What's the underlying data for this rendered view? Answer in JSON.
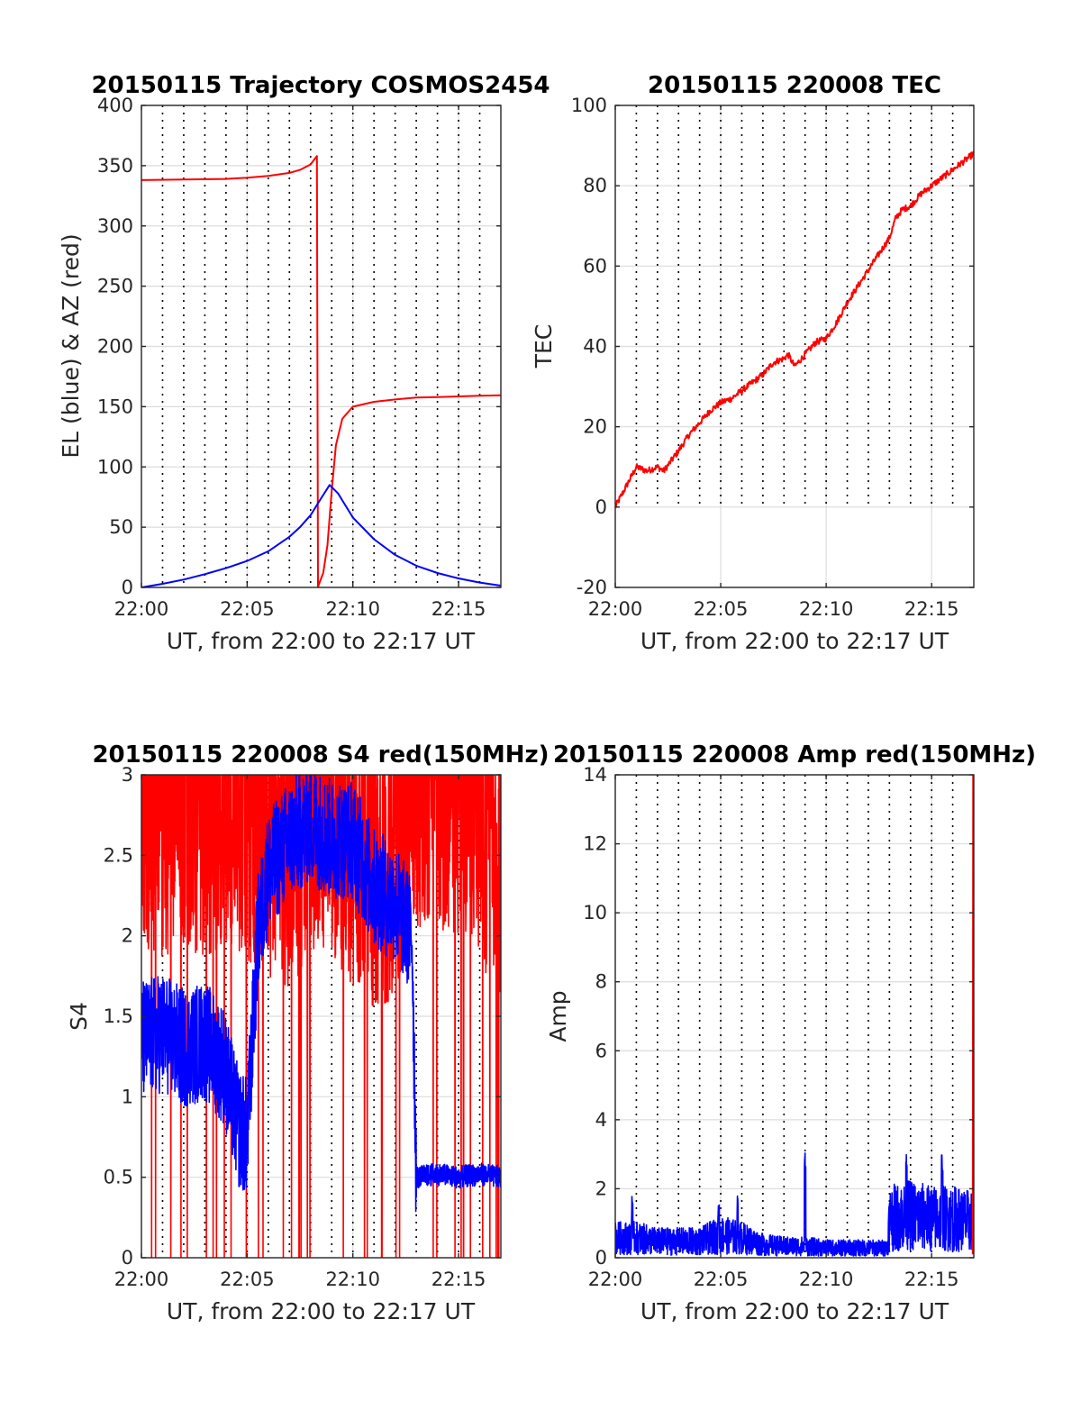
{
  "figure": {
    "background": "#ffffff",
    "colors": {
      "red": "#ff0000",
      "blue": "#0000ff",
      "axis": "#262626",
      "grid": "#dcdcdc",
      "vgrid": "#000000"
    }
  },
  "chart_data": [
    {
      "id": "trajectory",
      "type": "line",
      "title": "20150115 Trajectory COSMOS2454",
      "xlabel": "UT, from 22:00 to 22:17 UT",
      "ylabel": "EL (blue) & AZ (red)",
      "x_unit": "minutes after 22:00 UT",
      "xlim": [
        0,
        17
      ],
      "ylim": [
        0,
        400
      ],
      "xticks": [
        0,
        5,
        10,
        15
      ],
      "xtick_labels": [
        "22:00",
        "22:05",
        "22:10",
        "22:15"
      ],
      "yticks": [
        0,
        50,
        100,
        150,
        200,
        250,
        300,
        350,
        400
      ],
      "ytick_labels": [
        "0",
        "50",
        "100",
        "150",
        "200",
        "250",
        "300",
        "350",
        "400"
      ],
      "dotted_vertical_grid": true,
      "series": [
        {
          "color": "#ff0000",
          "x": [
            0,
            2,
            4,
            5,
            6,
            7,
            7.5,
            8,
            8.3,
            8.35,
            8.4,
            8.6,
            8.8,
            9.0,
            9.2,
            9.5,
            10,
            11,
            12,
            13,
            14,
            15,
            16,
            17
          ],
          "y": [
            338,
            338.5,
            339,
            340,
            341.5,
            344,
            346.5,
            351,
            358,
            0,
            3,
            12,
            35,
            80,
            118,
            140,
            150,
            154,
            156,
            157.5,
            158,
            158.5,
            159,
            159.5
          ]
        },
        {
          "color": "#0000ff",
          "x": [
            0,
            1,
            2,
            3,
            4,
            5,
            6,
            7,
            7.5,
            8,
            8.5,
            8.9,
            9.3,
            10,
            11,
            12,
            13,
            14,
            15,
            16,
            17
          ],
          "y": [
            0,
            3,
            6.5,
            11,
            16,
            22,
            30,
            42,
            50,
            60,
            74,
            85,
            78,
            58,
            40,
            27,
            18,
            12,
            7.5,
            4,
            1.5
          ]
        }
      ]
    },
    {
      "id": "tec",
      "type": "line",
      "title": "20150115 220008 TEC",
      "xlabel": "UT, from 22:00 to 22:17 UT",
      "ylabel": "TEC",
      "x_unit": "minutes after 22:00 UT",
      "xlim": [
        0,
        17
      ],
      "ylim": [
        -20,
        100
      ],
      "xticks": [
        0,
        5,
        10,
        15
      ],
      "xtick_labels": [
        "22:00",
        "22:05",
        "22:10",
        "22:15"
      ],
      "yticks": [
        -20,
        0,
        20,
        40,
        60,
        80,
        100
      ],
      "ytick_labels": [
        "-20",
        "0",
        "20",
        "40",
        "60",
        "80",
        "100"
      ],
      "dotted_vertical_grid_below": 0,
      "series": [
        {
          "color": "#ff0000",
          "x": [
            0,
            0.3,
            0.6,
            1.0,
            1.5,
            2.0,
            2.3,
            3.0,
            3.5,
            4.0,
            4.5,
            5.0,
            5.5,
            6.0,
            6.5,
            7.0,
            7.5,
            8.0,
            8.2,
            8.5,
            9.0,
            9.5,
            10.0,
            10.5,
            11.0,
            11.5,
            12.0,
            12.5,
            13.0,
            13.3,
            13.6,
            14.0,
            14.5,
            15.0,
            15.5,
            16.0,
            16.5,
            17.0
          ],
          "y": [
            0,
            3,
            6,
            10,
            9,
            10,
            9,
            14,
            18,
            21,
            24,
            26,
            27,
            29,
            31,
            33,
            36,
            37,
            38,
            35,
            38,
            41,
            42,
            46,
            51,
            55,
            59,
            63,
            67,
            72,
            74,
            75,
            78,
            80,
            82,
            84,
            86,
            88
          ]
        }
      ]
    },
    {
      "id": "s4",
      "type": "line",
      "title": "20150115 220008 S4 red(150MHz)",
      "xlabel": "UT, from 22:00 to 22:17 UT",
      "ylabel": "S4",
      "x_unit": "minutes after 22:00 UT",
      "xlim": [
        0,
        17
      ],
      "ylim": [
        0,
        3
      ],
      "xticks": [
        0,
        5,
        10,
        15
      ],
      "xtick_labels": [
        "22:00",
        "22:05",
        "22:10",
        "22:15"
      ],
      "yticks": [
        0,
        0.5,
        1,
        1.5,
        2,
        2.5,
        3
      ],
      "ytick_labels": [
        "0",
        "0.5",
        "1",
        "1.5",
        "2",
        "2.5",
        "3"
      ],
      "dotted_vertical_grid": true,
      "series": [
        {
          "color": "#ff0000",
          "noisy": true,
          "dense": true,
          "x": [
            0,
            1,
            2,
            3,
            4,
            5,
            6,
            7,
            8,
            9,
            10,
            11,
            12,
            12.5,
            13,
            14,
            15,
            16,
            17
          ],
          "y": [
            2.7,
            2.6,
            2.7,
            2.6,
            2.7,
            2.6,
            2.5,
            2.4,
            2.6,
            2.6,
            2.4,
            2.3,
            2.3,
            2.7,
            2.8,
            2.8,
            2.7,
            2.6,
            2.3
          ],
          "drops_to_zero": true
        },
        {
          "color": "#0000ff",
          "noisy": true,
          "dense": true,
          "x": [
            0,
            1,
            2,
            3,
            3.9,
            4.6,
            5.0,
            5.5,
            6.0,
            7.0,
            8.0,
            9.0,
            10.0,
            11.0,
            12.0,
            12.8,
            13.0,
            14,
            15,
            16,
            17
          ],
          "y": [
            1.35,
            1.4,
            1.3,
            1.35,
            1.2,
            0.8,
            0.75,
            2.0,
            2.4,
            2.6,
            2.7,
            2.6,
            2.6,
            2.3,
            2.2,
            2.0,
            0.5,
            0.52,
            0.5,
            0.52,
            0.5
          ]
        }
      ]
    },
    {
      "id": "amp",
      "type": "line",
      "title": "20150115 220008 Amp red(150MHz)",
      "xlabel": "UT, from 22:00 to 22:17 UT",
      "ylabel": "Amp",
      "x_unit": "minutes after 22:00 UT",
      "xlim": [
        0,
        17
      ],
      "ylim": [
        0,
        14
      ],
      "xticks": [
        0,
        5,
        10,
        15
      ],
      "xtick_labels": [
        "22:00",
        "22:05",
        "22:10",
        "22:15"
      ],
      "yticks": [
        0,
        2,
        4,
        6,
        8,
        10,
        12,
        14
      ],
      "ytick_labels": [
        "0",
        "2",
        "4",
        "6",
        "8",
        "10",
        "12",
        "14"
      ],
      "dotted_vertical_grid": true,
      "series": [
        {
          "color": "#0000ff",
          "noisy": true,
          "dense": true,
          "x": [
            0,
            1,
            2,
            3,
            4,
            5,
            6,
            7,
            8,
            9,
            10,
            11,
            12,
            12.9,
            13.0,
            14,
            15,
            16,
            17
          ],
          "y": [
            0.6,
            0.6,
            0.5,
            0.5,
            0.5,
            0.7,
            0.6,
            0.4,
            0.35,
            0.35,
            0.3,
            0.3,
            0.3,
            0.3,
            1.2,
            1.3,
            1.2,
            1.2,
            1.1
          ],
          "spikes": [
            [
              0.8,
              1.9
            ],
            [
              4.9,
              1.6
            ],
            [
              5.8,
              1.8
            ],
            [
              9.0,
              3.1
            ],
            [
              13.8,
              3.1
            ],
            [
              15.5,
              3.1
            ]
          ]
        },
        {
          "color": "#ff0000",
          "x": [
            16.95,
            16.97,
            16.98,
            17.0
          ],
          "y": [
            0.1,
            14,
            2.0,
            0.1
          ]
        }
      ]
    }
  ]
}
